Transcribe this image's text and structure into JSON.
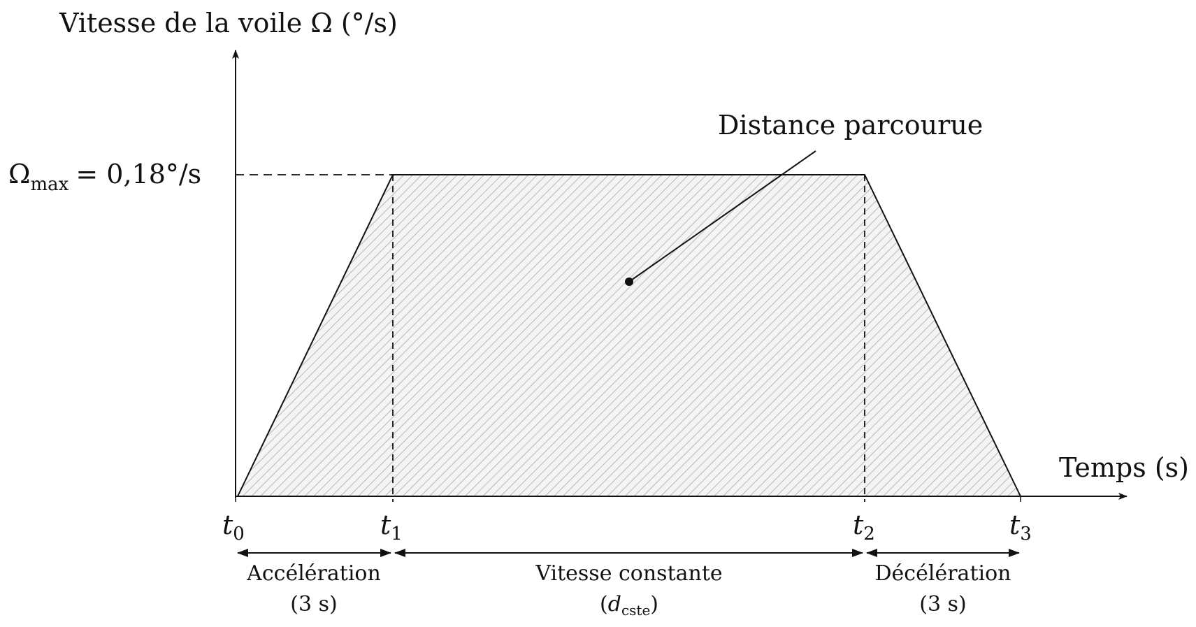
{
  "axes": {
    "y_label": "Vitesse de la voile Ω (°/s)",
    "x_label": "Temps (s)"
  },
  "omega_max": {
    "symbol": "Ω",
    "subscript": "max",
    "value_text": "= 0,18°/s"
  },
  "annotation": {
    "text": "Distance parcourue"
  },
  "time_marks": [
    {
      "var": "t",
      "sub": "0"
    },
    {
      "var": "t",
      "sub": "1"
    },
    {
      "var": "t",
      "sub": "2"
    },
    {
      "var": "t",
      "sub": "3"
    }
  ],
  "phases": [
    {
      "line1": "Accélération",
      "line2": "(3 s)"
    },
    {
      "line1": "Vitesse constante",
      "line2_var": "d",
      "line2_sub": "cste",
      "open": "(",
      "close": ")"
    },
    {
      "line1": "Décélération",
      "line2": "(3 s)"
    }
  ],
  "colors": {
    "line": "#111111",
    "hatch": "#b0b0b0",
    "fill": "#ebebeb"
  }
}
